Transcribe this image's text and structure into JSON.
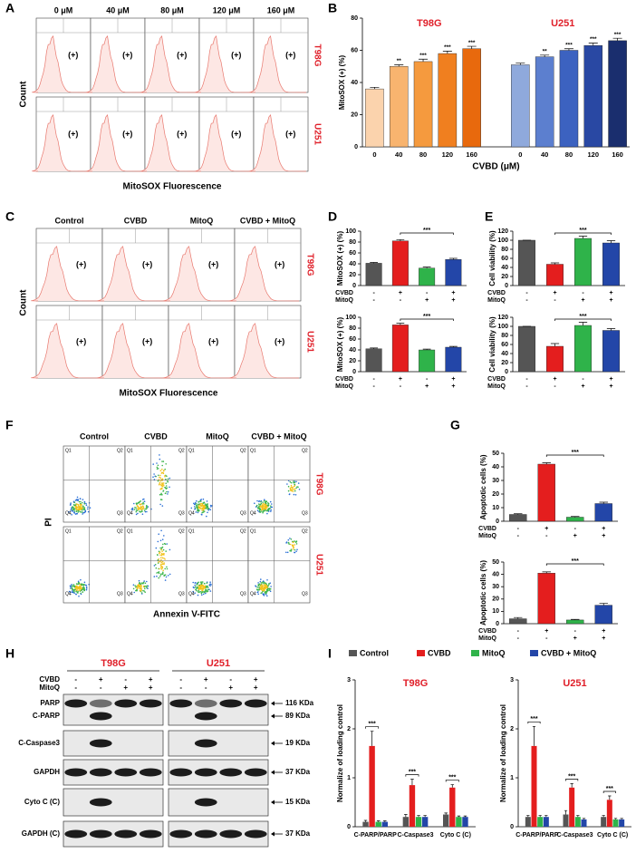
{
  "panels": [
    "A",
    "B",
    "C",
    "D",
    "E",
    "F",
    "G",
    "H",
    "I"
  ],
  "cell_lines": [
    "T98G",
    "U251"
  ],
  "doses": [
    "0 μM",
    "40 μM",
    "80 μM",
    "120 μM",
    "160 μM"
  ],
  "conditions": [
    {
      "name": "Control",
      "color": "#555555"
    },
    {
      "name": "CVBD",
      "color": "#e41e1e"
    },
    {
      "name": "MitoQ",
      "color": "#2fb34a"
    },
    {
      "name": "CVBD + MitoQ",
      "color": "#2346a8"
    }
  ],
  "treatments": [
    {
      "name": "CVBD",
      "signs": [
        "-",
        "+",
        "-",
        "+"
      ]
    },
    {
      "name": "MitoQ",
      "signs": [
        "-",
        "-",
        "+",
        "+"
      ]
    }
  ],
  "gate_label": "(+)",
  "flow": {
    "count_label": "Count",
    "x_label": "MitoSOX Fluorescence"
  },
  "apoptosis": {
    "y_label": "PI",
    "x_label": "Annexin V-FITC",
    "quadrants": [
      "Q1",
      "Q2",
      "Q3",
      "Q4"
    ]
  },
  "blot": {
    "rows": [
      {
        "label": "PARP",
        "size": "116 KDa"
      },
      {
        "label": "C-PARP",
        "size": "89 KDa"
      },
      {
        "label": "C-Caspase3",
        "size": "19 KDa"
      },
      {
        "label": "GAPDH",
        "size": "37 KDa"
      },
      {
        "label": "Cyto C (C)",
        "size": "15 KDa"
      },
      {
        "label": "GAPDH (C)",
        "size": "37 KDa"
      }
    ]
  },
  "chart_data": [
    {
      "type": "bar",
      "categories": [
        "0",
        "40",
        "80",
        "120",
        "160",
        "0",
        "40",
        "80",
        "120",
        "160"
      ],
      "values": [
        36,
        50,
        53,
        58,
        61,
        51,
        56,
        60,
        63,
        66
      ],
      "errors": [
        1,
        1,
        1.5,
        1.5,
        1.5,
        1,
        1,
        1,
        1.5,
        1.5
      ],
      "colors": [
        "#fbd3ad",
        "#f8b46f",
        "#f59a3e",
        "#f07f1f",
        "#e8690d",
        "#8fa9dc",
        "#5c7fcf",
        "#3c62c0",
        "#2948a3",
        "#1a2e6e"
      ],
      "annotations": [
        null,
        "**",
        "***",
        "***",
        "***",
        null,
        "**",
        "***",
        "***",
        "***"
      ],
      "ylabel": "MitoSOX (+) (%)",
      "xlabel": "CVBD (μM)",
      "ylim": [
        0,
        80
      ],
      "yticks": [
        0,
        20,
        40,
        60,
        80
      ]
    },
    {
      "type": "bar",
      "ylabel": "MitoSOX (+) (%)",
      "values": [
        41,
        82,
        32,
        48
      ],
      "errors": [
        1.5,
        2.5,
        2,
        2
      ],
      "significance": "***",
      "ylim": [
        0,
        100
      ],
      "yticks": [
        0,
        20,
        40,
        60,
        80,
        100
      ]
    },
    {
      "type": "bar",
      "ylabel": "MitoSOX (+) (%)",
      "values": [
        42,
        86,
        40,
        45
      ],
      "errors": [
        1.5,
        3,
        1.5,
        1.5
      ],
      "significance": "***",
      "ylim": [
        0,
        100
      ],
      "yticks": [
        0,
        20,
        40,
        60,
        80,
        100
      ]
    },
    {
      "type": "bar",
      "ylabel": "Cell viability (%)",
      "values": [
        100,
        47,
        104,
        94
      ],
      "errors": [
        0,
        3,
        5,
        5
      ],
      "significance": "***",
      "ylim": [
        0,
        120
      ],
      "yticks": [
        0,
        20,
        40,
        60,
        80,
        100,
        120
      ]
    },
    {
      "type": "bar",
      "ylabel": "Cell viability (%)",
      "values": [
        100,
        56,
        102,
        91
      ],
      "errors": [
        0,
        6,
        7,
        4
      ],
      "significance": "***",
      "ylim": [
        0,
        120
      ],
      "yticks": [
        0,
        20,
        40,
        60,
        80,
        100,
        120
      ]
    },
    {
      "type": "bar",
      "ylabel": "Apoptotic cells (%)",
      "values": [
        5,
        42,
        3,
        13
      ],
      "errors": [
        0.5,
        1,
        0.5,
        1
      ],
      "significance": "***",
      "ylim": [
        0,
        50
      ],
      "yticks": [
        0,
        10,
        20,
        30,
        40,
        50
      ]
    },
    {
      "type": "bar",
      "ylabel": "Apoptotic cells (%)",
      "values": [
        4,
        41,
        3,
        15
      ],
      "errors": [
        1,
        1,
        0.5,
        1.5
      ],
      "significance": "***",
      "ylim": [
        0,
        50
      ],
      "yticks": [
        0,
        10,
        20,
        30,
        40,
        50
      ]
    },
    {
      "type": "grouped_bar",
      "title": "T98G",
      "ylabel": "Normalize of loading control",
      "categories": [
        "C-PARP/PARP",
        "C-Caspase3",
        "Cyto C (C)"
      ],
      "series": [
        {
          "values": [
            0.1,
            0.2,
            0.25
          ],
          "errors": [
            0.03,
            0.05,
            0.03
          ]
        },
        {
          "values": [
            1.65,
            0.85,
            0.8
          ],
          "errors": [
            0.3,
            0.12,
            0.06
          ]
        },
        {
          "values": [
            0.1,
            0.2,
            0.2
          ],
          "errors": [
            0.02,
            0.03,
            0.02
          ]
        },
        {
          "values": [
            0.1,
            0.2,
            0.2
          ],
          "errors": [
            0.02,
            0.03,
            0.02
          ]
        }
      ],
      "significance": "***",
      "ylim": [
        0,
        3
      ],
      "yticks": [
        0,
        1,
        2,
        3
      ]
    },
    {
      "type": "grouped_bar",
      "title": "U251",
      "ylabel": "Normalize of loading control",
      "categories": [
        "C-PARP/PARP",
        "C-Caspase3",
        "Cyto C (C)"
      ],
      "series": [
        {
          "values": [
            0.2,
            0.25,
            0.2
          ],
          "errors": [
            0.03,
            0.08,
            0.03
          ]
        },
        {
          "values": [
            1.65,
            0.8,
            0.55
          ],
          "errors": [
            0.4,
            0.08,
            0.08
          ]
        },
        {
          "values": [
            0.2,
            0.2,
            0.15
          ],
          "errors": [
            0.03,
            0.03,
            0.02
          ]
        },
        {
          "values": [
            0.2,
            0.15,
            0.15
          ],
          "errors": [
            0.03,
            0.02,
            0.02
          ]
        }
      ],
      "significance": "***",
      "ylim": [
        0,
        3
      ],
      "yticks": [
        0,
        1,
        2,
        3
      ]
    }
  ]
}
